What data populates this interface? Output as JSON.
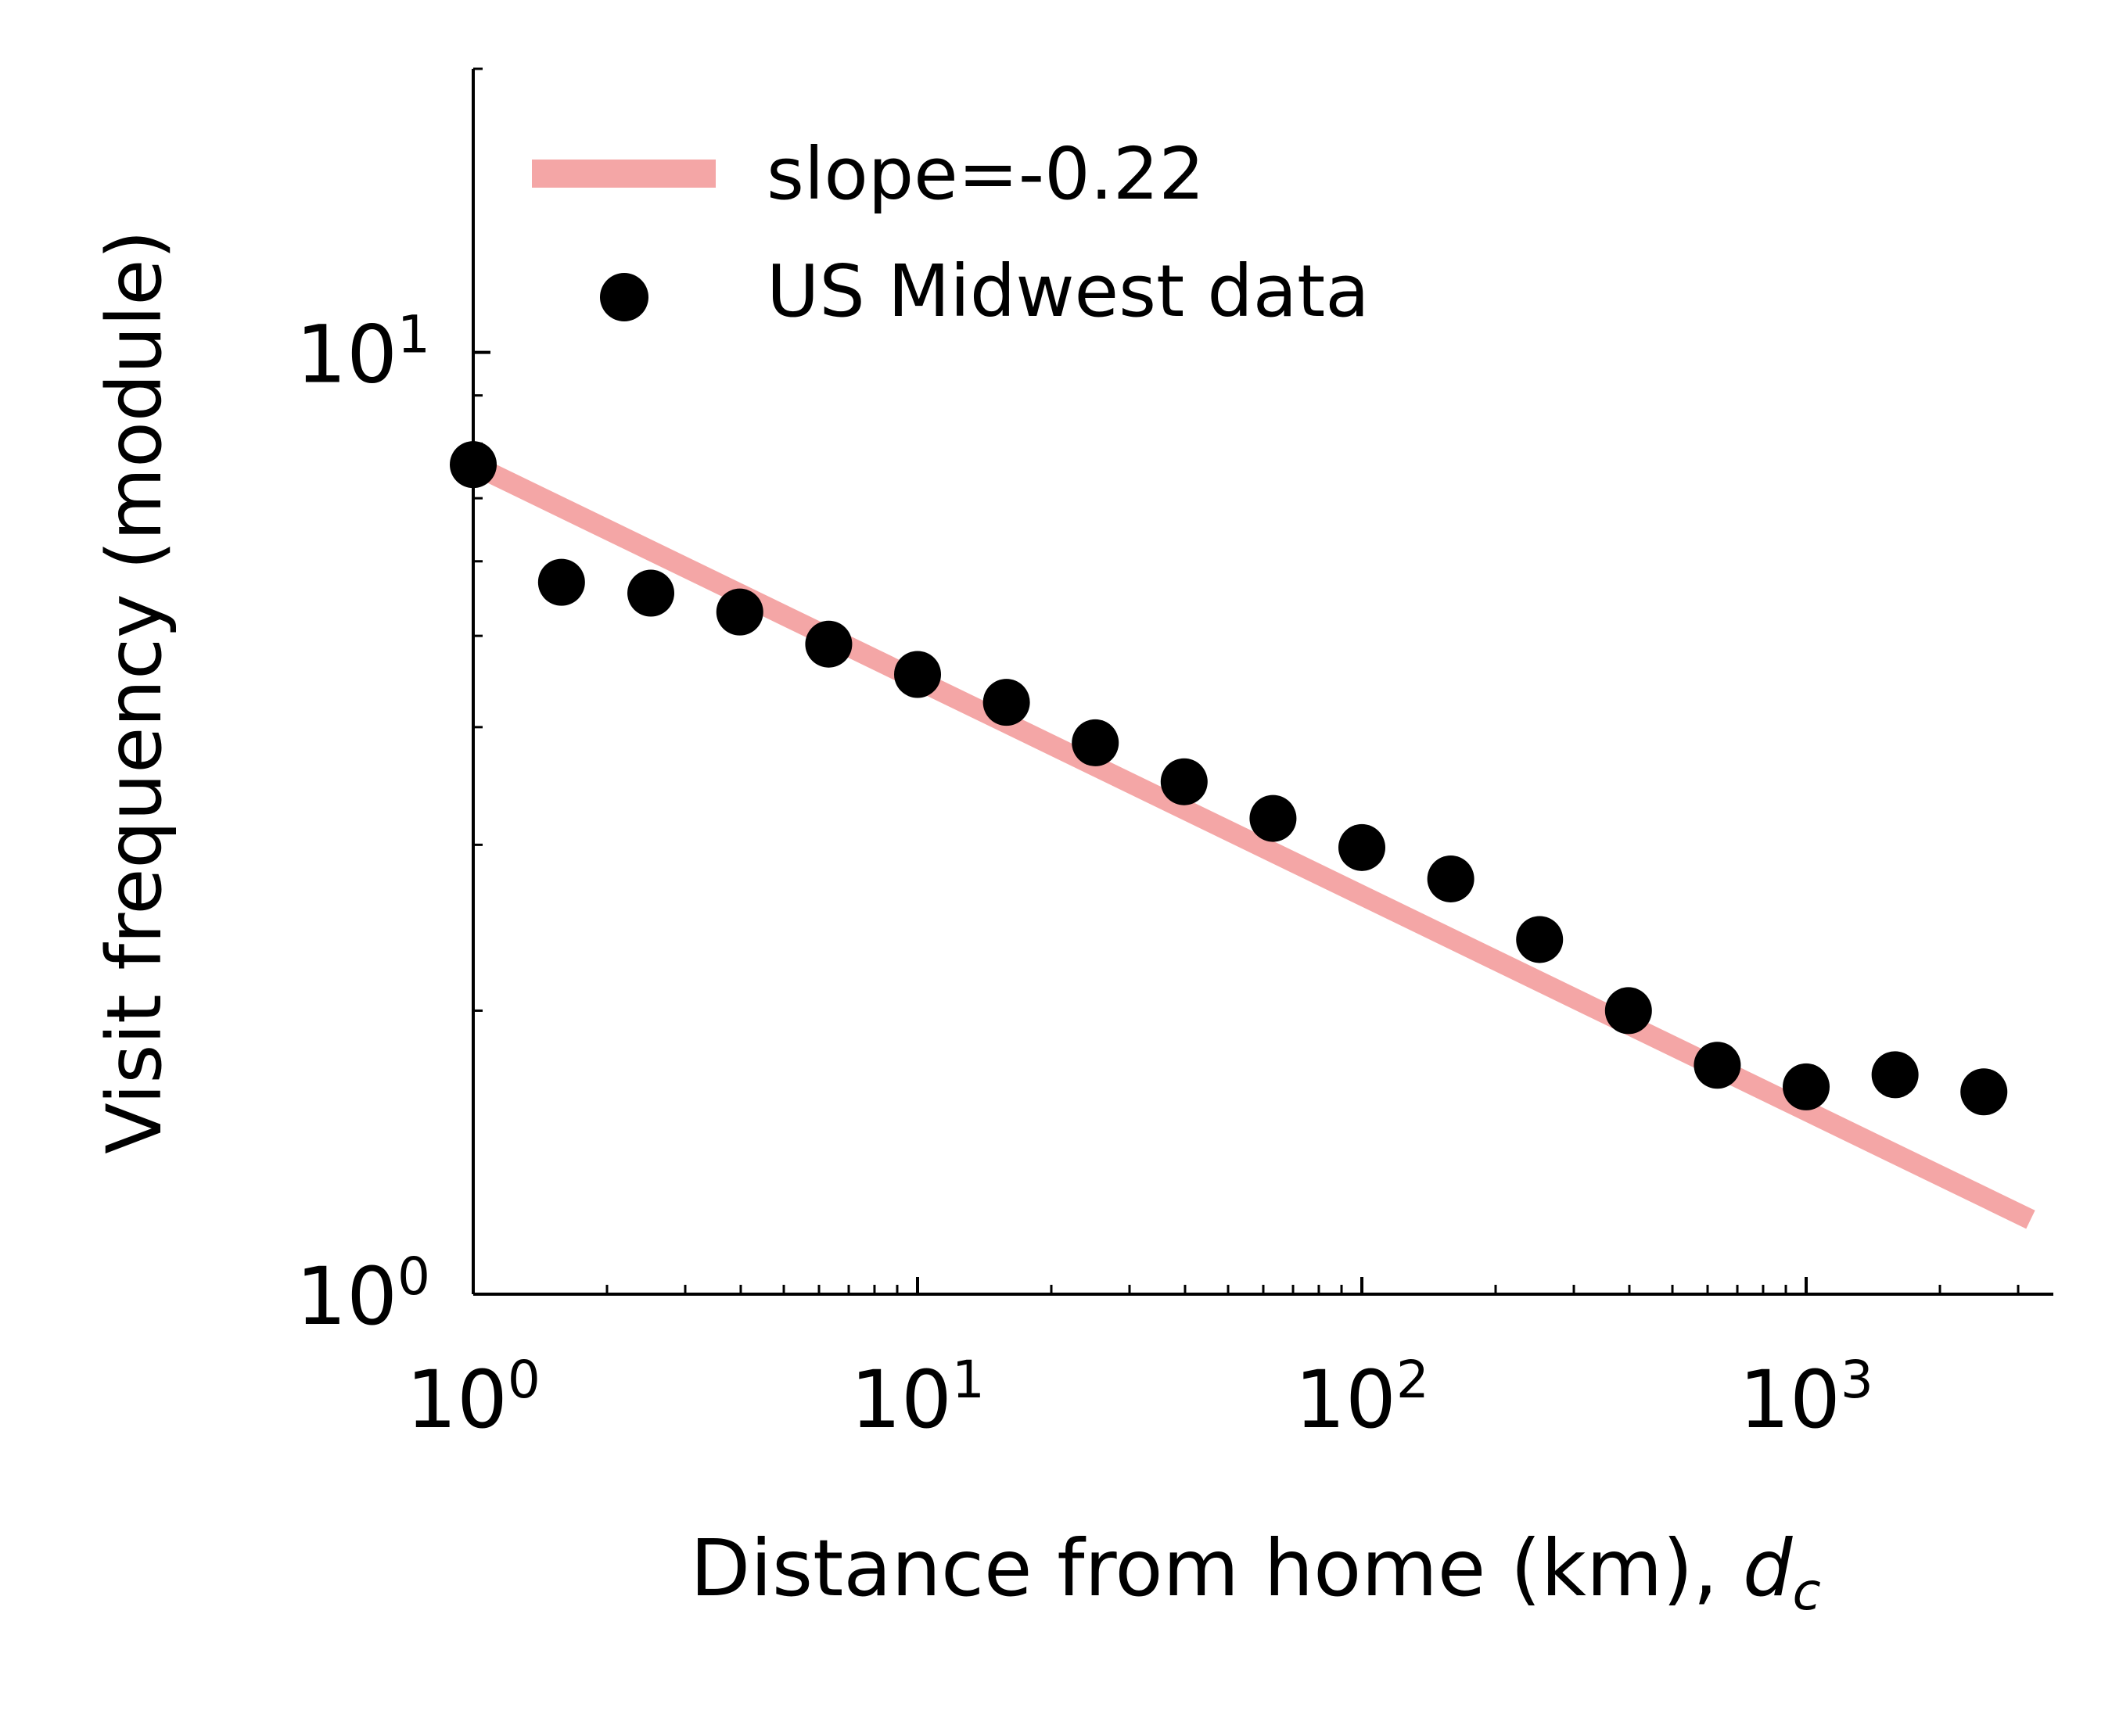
{
  "chart_data": {
    "type": "scatter",
    "xscale": "log",
    "yscale": "log",
    "xlim": [
      1,
      3600
    ],
    "ylim": [
      1,
      20
    ],
    "xlabel": "Distance from home (km), ",
    "xlabel_var": "d",
    "xlabel_sub": "c",
    "ylabel": "Visit frequency (module)",
    "x_ticks": [
      {
        "value": 1,
        "base": "10",
        "exp": "0"
      },
      {
        "value": 10,
        "base": "10",
        "exp": "1"
      },
      {
        "value": 100,
        "base": "10",
        "exp": "2"
      },
      {
        "value": 1000,
        "base": "10",
        "exp": "3"
      }
    ],
    "y_ticks": [
      {
        "value": 1,
        "base": "10",
        "exp": "0"
      },
      {
        "value": 10,
        "base": "10",
        "exp": "1"
      }
    ],
    "legend": {
      "location": "upper-left",
      "entries": [
        {
          "label": "slope=-0.22",
          "kind": "line",
          "color": "#f4a6a6"
        },
        {
          "label": "US Midwest data",
          "kind": "marker",
          "color": "#000000"
        }
      ]
    },
    "grid": false,
    "series": [
      {
        "name": "US Midwest data",
        "kind": "scatter",
        "color": "#000000",
        "x": [
          1.0,
          1.58,
          2.51,
          3.98,
          6.31,
          10.0,
          15.85,
          25.12,
          39.81,
          63.1,
          100.0,
          158.5,
          251.2,
          398.1,
          631.0,
          1000.0,
          1585.0,
          2512.0
        ],
        "y": [
          7.6,
          5.7,
          5.55,
          5.3,
          4.9,
          4.55,
          4.25,
          3.85,
          3.5,
          3.2,
          2.98,
          2.76,
          2.38,
          2.0,
          1.75,
          1.66,
          1.71,
          1.64
        ]
      },
      {
        "name": "slope=-0.22",
        "kind": "line",
        "color": "#f4a6a6",
        "slope": -0.22,
        "x": [
          1.0,
          3200.0
        ],
        "y": [
          7.6,
          1.2
        ]
      }
    ]
  }
}
